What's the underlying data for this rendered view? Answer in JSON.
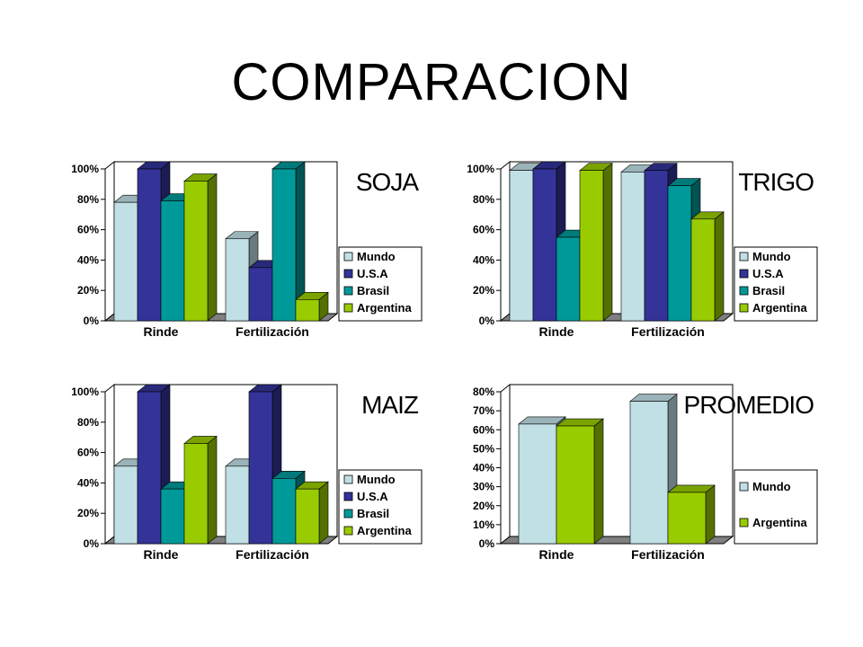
{
  "slide": {
    "title": "COMPARACION"
  },
  "colors": {
    "Mundo": "#c0e0e6",
    "U.S.A": "#333399",
    "Brasil": "#009999",
    "Argentina": "#99cc00"
  },
  "chart_data": [
    {
      "type": "bar",
      "title": "SOJA",
      "categories": [
        "Rinde",
        "Fertilización"
      ],
      "series": [
        {
          "name": "Mundo",
          "values": [
            78,
            54
          ]
        },
        {
          "name": "U.S.A",
          "values": [
            100,
            35
          ]
        },
        {
          "name": "Brasil",
          "values": [
            79,
            100
          ]
        },
        {
          "name": "Argentina",
          "values": [
            92,
            14
          ]
        }
      ],
      "ylim": [
        0,
        100
      ],
      "yticks": [
        "0%",
        "20%",
        "40%",
        "60%",
        "80%",
        "100%"
      ],
      "legend": "right"
    },
    {
      "type": "bar",
      "title": "TRIGO",
      "categories": [
        "Rinde",
        "Fertilización"
      ],
      "series": [
        {
          "name": "Mundo",
          "values": [
            99,
            98
          ]
        },
        {
          "name": "U.S.A",
          "values": [
            100,
            99
          ]
        },
        {
          "name": "Brasil",
          "values": [
            55,
            89
          ]
        },
        {
          "name": "Argentina",
          "values": [
            99,
            67
          ]
        }
      ],
      "ylim": [
        0,
        100
      ],
      "yticks": [
        "0%",
        "20%",
        "40%",
        "60%",
        "80%",
        "100%"
      ],
      "legend": "right"
    },
    {
      "type": "bar",
      "title": "MAIZ",
      "categories": [
        "Rinde",
        "Fertilización"
      ],
      "series": [
        {
          "name": "Mundo",
          "values": [
            51,
            51
          ]
        },
        {
          "name": "U.S.A",
          "values": [
            100,
            100
          ]
        },
        {
          "name": "Brasil",
          "values": [
            36,
            43
          ]
        },
        {
          "name": "Argentina",
          "values": [
            66,
            36
          ]
        }
      ],
      "ylim": [
        0,
        100
      ],
      "yticks": [
        "0%",
        "20%",
        "40%",
        "60%",
        "80%",
        "100%"
      ],
      "legend": "right"
    },
    {
      "type": "bar",
      "title": "PROMEDIO",
      "categories": [
        "Rinde",
        "Fertilización"
      ],
      "series": [
        {
          "name": "Mundo",
          "values": [
            63,
            75
          ]
        },
        {
          "name": "Argentina",
          "values": [
            62,
            27
          ]
        }
      ],
      "ylim": [
        0,
        80
      ],
      "yticks": [
        "0%",
        "10%",
        "20%",
        "30%",
        "40%",
        "50%",
        "60%",
        "70%",
        "80%"
      ],
      "legend": "right"
    }
  ]
}
